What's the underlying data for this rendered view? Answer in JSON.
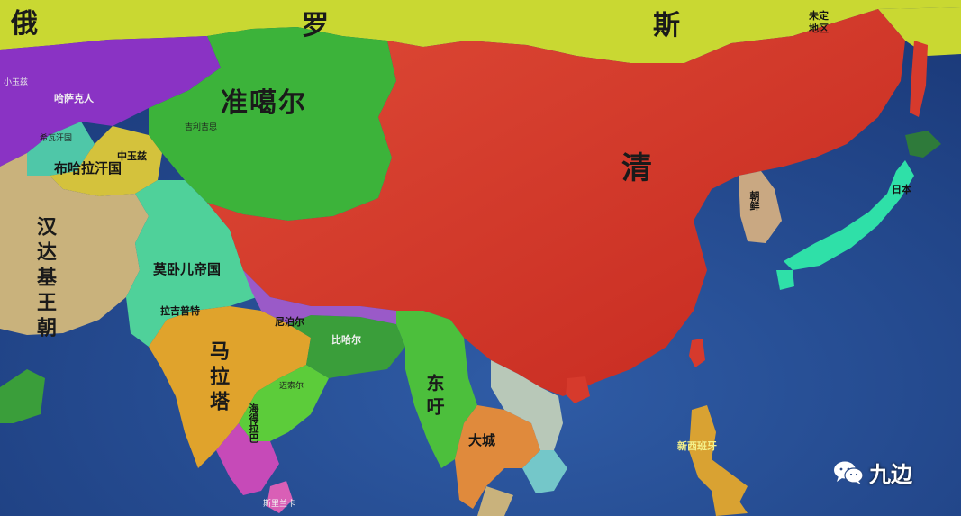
{
  "regions": [
    {
      "name": "russia",
      "color": "#c9d832"
    },
    {
      "name": "qing",
      "color": "#d63a2c"
    },
    {
      "name": "dzungar",
      "color": "#3cb33a"
    },
    {
      "name": "kazakh",
      "color": "#8a33c4"
    },
    {
      "name": "bukhara",
      "color": "#d4c23c"
    },
    {
      "name": "khiva",
      "color": "#4fc7a8"
    },
    {
      "name": "afghan",
      "color": "#c9b27c"
    },
    {
      "name": "mughal",
      "color": "#4fd19a"
    },
    {
      "name": "maratha",
      "color": "#e0a32c"
    },
    {
      "name": "burma",
      "color": "#4cbf3c"
    },
    {
      "name": "ayutthaya",
      "color": "#e08a3c"
    },
    {
      "name": "korea",
      "color": "#c9a882"
    },
    {
      "name": "japan",
      "color": "#2fe0a8"
    },
    {
      "name": "ocean",
      "color": "#23488f"
    }
  ],
  "labels": {
    "e_russia": "俄",
    "luo": "罗",
    "si": "斯",
    "unknown": "未定",
    "region": "地区",
    "small_horde": "小玉兹",
    "kazakh": "哈萨克人",
    "dzungar": "准噶尔",
    "yarkand": "吉利吉思",
    "khiva": "希瓦汗国",
    "bukhara": "布哈拉汗国",
    "middle_horde": "中玉兹",
    "qing": "清",
    "afghan": "汉达基王朝",
    "mughal": "莫卧儿帝国",
    "rajput": "拉吉普特",
    "maratha": "马拉塔",
    "bengal": "比哈尔",
    "nepal": "尼泊尔",
    "burma": "东吁",
    "ayutthaya": "大城",
    "korea": "朝鲜",
    "japan": "日本",
    "spain": "新西班牙",
    "ceylon": "斯里兰卡",
    "nizam": "海得拉巴",
    "mysore": "迈索尔"
  },
  "watermark": {
    "icon": "wechat-icon",
    "text": "九边"
  }
}
